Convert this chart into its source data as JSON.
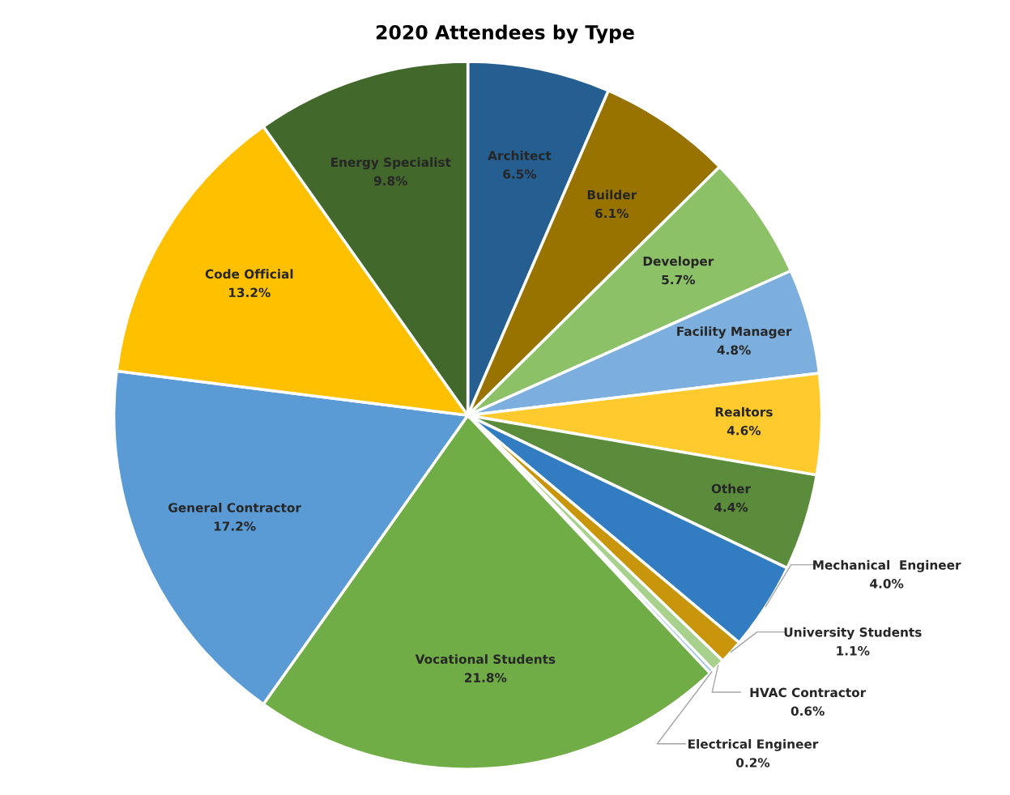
{
  "chart_data": {
    "type": "pie",
    "title": "2020 Attendees by Type",
    "categories": [
      "Architect",
      "Builder",
      "Developer",
      "Facility Manager",
      "Realtors",
      "Other",
      "Mechanical  Engineer",
      "University Students",
      "HVAC Contractor",
      "Electrical Engineer",
      "Vocational Students",
      "General Contractor",
      "Code Official",
      "Energy Specialist"
    ],
    "values": [
      6.5,
      6.1,
      5.7,
      4.8,
      4.6,
      4.4,
      4.0,
      1.1,
      0.6,
      0.2,
      21.8,
      17.2,
      13.2,
      9.8
    ],
    "value_labels": [
      "6.5%",
      "6.1%",
      "5.7%",
      "4.8%",
      "4.6%",
      "4.4%",
      "4.0%",
      "1.1%",
      "0.6%",
      "0.2%",
      "21.8%",
      "17.2%",
      "13.2%",
      "9.8%"
    ],
    "colors": [
      "#255e91",
      "#997300",
      "#8cc168",
      "#7cafdd",
      "#ffca2e",
      "#5b8c3b",
      "#327dc2",
      "#c9960b",
      "#a9d18e",
      "#9dc3e6",
      "#70ad47",
      "#5b9bd5",
      "#ffc000",
      "#43682b"
    ]
  }
}
